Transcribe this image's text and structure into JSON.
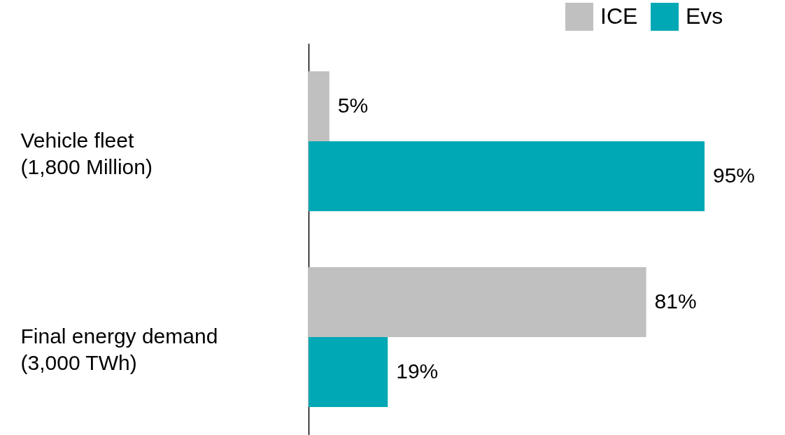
{
  "chart_data": {
    "type": "bar",
    "orientation": "horizontal",
    "categories": [
      "Vehicle fleet\n(1,800 Million)",
      "Final energy demand\n(3,000 TWh)"
    ],
    "series": [
      {
        "name": "ICE",
        "color": "#c0c0c0",
        "values": [
          5,
          81
        ],
        "value_labels": [
          "5%",
          "81%"
        ]
      },
      {
        "name": "Evs",
        "color": "#00a8b5",
        "values": [
          95,
          19
        ],
        "value_labels": [
          "95%",
          "19%"
        ]
      }
    ],
    "legend": "top right",
    "grid": false
  }
}
